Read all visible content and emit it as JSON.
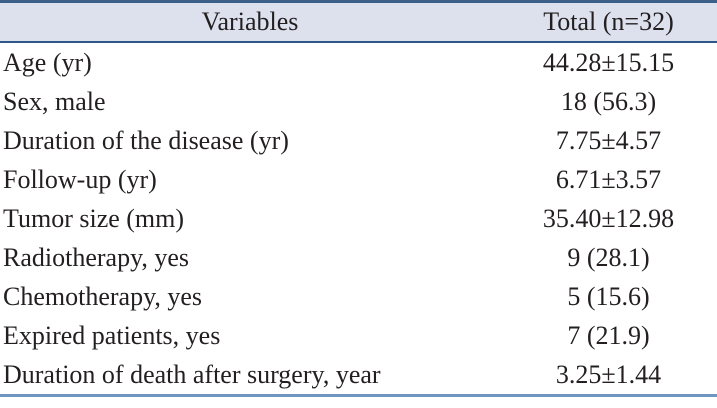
{
  "colors": {
    "top_border": "#3b5f88",
    "header_border": "#2e5787",
    "bottom_border": "#6f95c0",
    "header_bg": "#dde1ee",
    "text": "#231f20"
  },
  "table": {
    "columns": [
      "Variables",
      "Total (n=32)"
    ],
    "rows": [
      {
        "label": "Age (yr)",
        "value": "44.28±15.15"
      },
      {
        "label": "Sex, male",
        "value": "18 (56.3)"
      },
      {
        "label": "Duration of the disease (yr)",
        "value": "7.75±4.57"
      },
      {
        "label": "Follow-up (yr)",
        "value": "6.71±3.57"
      },
      {
        "label": "Tumor size (mm)",
        "value": "35.40±12.98"
      },
      {
        "label": "Radiotherapy, yes",
        "value": "9 (28.1)"
      },
      {
        "label": "Chemotherapy, yes",
        "value": "5 (15.6)"
      },
      {
        "label": "Expired patients, yes",
        "value": "7 (21.9)"
      },
      {
        "label": "Duration of death after surgery, year",
        "value": "3.25±1.44"
      }
    ]
  }
}
